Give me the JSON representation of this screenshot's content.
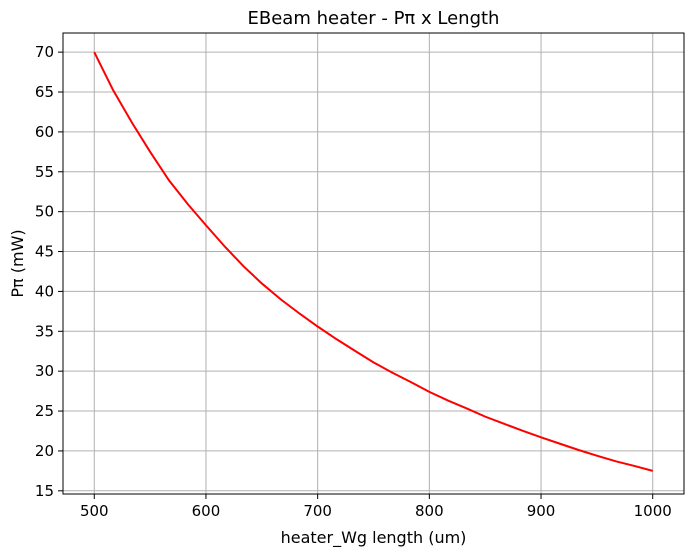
{
  "chart_data": {
    "type": "line",
    "title": "EBeam heater  - Pπ x Length",
    "xlabel": "heater_Wg length (um)",
    "ylabel": "Pπ (mW)",
    "xlim": [
      472,
      1028
    ],
    "ylim": [
      14.6,
      72.4
    ],
    "xticks": [
      500,
      600,
      700,
      800,
      900,
      1000
    ],
    "yticks": [
      15,
      20,
      25,
      30,
      35,
      40,
      45,
      50,
      55,
      60,
      65,
      70
    ],
    "grid": true,
    "series": [
      {
        "color": "#ff0000",
        "x": [
          500,
          517,
          534,
          550,
          567,
          584,
          600,
          617,
          634,
          650,
          667,
          684,
          700,
          717,
          734,
          750,
          767,
          784,
          800,
          817,
          834,
          850,
          867,
          884,
          900,
          917,
          934,
          950,
          967,
          984,
          1000
        ],
        "y": [
          70.0,
          65.2,
          61.1,
          57.5,
          53.9,
          50.9,
          48.3,
          45.6,
          43.1,
          41.0,
          39.0,
          37.2,
          35.6,
          34.0,
          32.5,
          31.1,
          29.8,
          28.6,
          27.4,
          26.3,
          25.3,
          24.3,
          23.4,
          22.5,
          21.7,
          20.9,
          20.1,
          19.4,
          18.7,
          18.1,
          17.5
        ]
      }
    ]
  }
}
